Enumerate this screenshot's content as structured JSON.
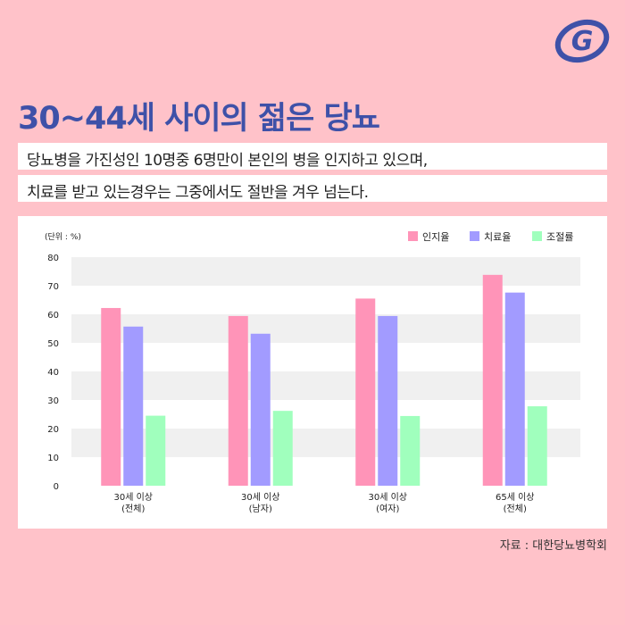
{
  "title": "30~44세 사이의 젊은 당뇨",
  "subtitle_lines": [
    "당뇨병을 가진성인 10명중 6명만이 본인의 병을 인지하고 있으며,",
    "치료를 받고 있는경우는 그중에서도 절반을 겨우 넘는다."
  ],
  "source": {
    "label": "자료 : ",
    "value": "대한당뇨병학회"
  },
  "logo_icon": "g-swoosh-logo",
  "chart_data": {
    "type": "bar",
    "unit_label": "(단위 : %)",
    "categories": [
      {
        "line1": "30세 이상",
        "line2": "(전체)"
      },
      {
        "line1": "30세 이상",
        "line2": "(남자)"
      },
      {
        "line1": "30세 이상",
        "line2": "(여자)"
      },
      {
        "line1": "65세 이상",
        "line2": "(전체)"
      }
    ],
    "series": [
      {
        "name": "인지율",
        "color": "#ff94b8",
        "values": [
          62.2,
          59.4,
          65.5,
          73.8
        ]
      },
      {
        "name": "치료율",
        "color": "#a29bff",
        "values": [
          55.7,
          53.2,
          59.4,
          67.6
        ]
      },
      {
        "name": "조절률",
        "color": "#a0ffbd",
        "values": [
          24.5,
          26.2,
          24.4,
          27.8
        ]
      }
    ],
    "ylim": [
      0,
      80
    ],
    "yticks": [
      0,
      10,
      20,
      30,
      40,
      50,
      60,
      70,
      80
    ],
    "grid": "alternating horizontal bands",
    "legend_position": "top-right"
  }
}
